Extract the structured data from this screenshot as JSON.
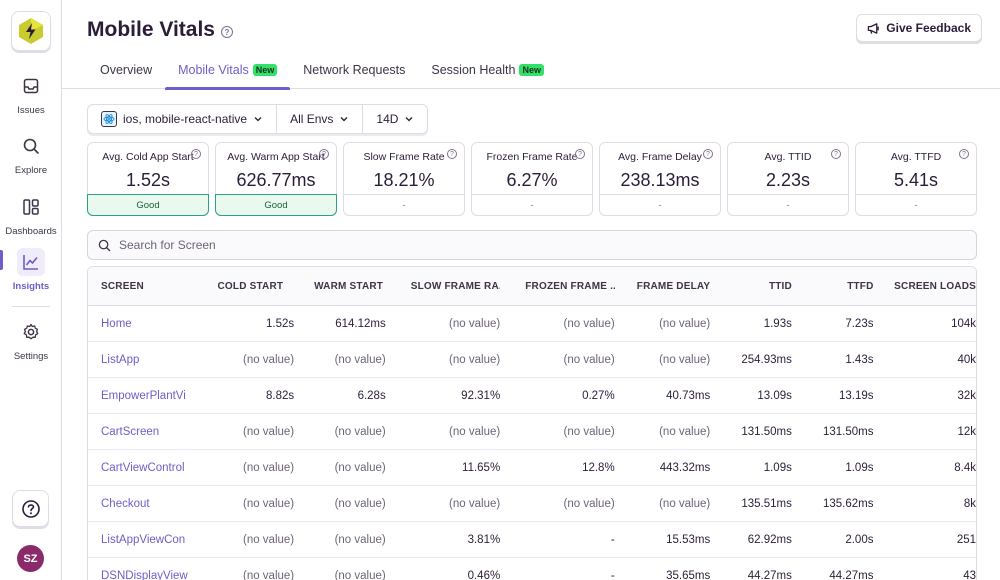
{
  "sidebar": {
    "items": [
      {
        "label": "Issues",
        "icon": "inbox-icon"
      },
      {
        "label": "Explore",
        "icon": "search-icon"
      },
      {
        "label": "Dashboards",
        "icon": "dashboard-icon"
      },
      {
        "label": "Insights",
        "icon": "chart-icon"
      },
      {
        "label": "Settings",
        "icon": "gear-icon"
      }
    ],
    "avatar_initials": "SZ"
  },
  "header": {
    "title": "Mobile Vitals",
    "feedback_label": "Give Feedback",
    "tabs": [
      {
        "label": "Overview",
        "badge": ""
      },
      {
        "label": "Mobile Vitals",
        "badge": "New"
      },
      {
        "label": "Network Requests",
        "badge": ""
      },
      {
        "label": "Session Health",
        "badge": "New"
      }
    ]
  },
  "filters": {
    "project": "ios, mobile-react-native",
    "environment": "All Envs",
    "period": "14D"
  },
  "cards": [
    {
      "label": "Avg. Cold App Start",
      "value": "1.52s",
      "status": "Good"
    },
    {
      "label": "Avg. Warm App Start",
      "value": "626.77ms",
      "status": "Good"
    },
    {
      "label": "Slow Frame Rate",
      "value": "18.21%",
      "status": "-"
    },
    {
      "label": "Frozen Frame Rate",
      "value": "6.27%",
      "status": "-"
    },
    {
      "label": "Avg. Frame Delay",
      "value": "238.13ms",
      "status": "-"
    },
    {
      "label": "Avg. TTID",
      "value": "2.23s",
      "status": "-"
    },
    {
      "label": "Avg. TTFD",
      "value": "5.41s",
      "status": "-"
    }
  ],
  "search": {
    "placeholder": "Search for Screen"
  },
  "table": {
    "columns": [
      "SCREEN",
      "COLD START",
      "WARM START",
      "SLOW FRAME RA...",
      "FROZEN FRAME ...",
      "FRAME DELAY",
      "TTID",
      "TTFD",
      "SCREEN LOADS"
    ],
    "rows": [
      [
        "Home",
        "1.52s",
        "614.12ms",
        "(no value)",
        "(no value)",
        "(no value)",
        "1.93s",
        "7.23s",
        "104k"
      ],
      [
        "ListApp",
        "(no value)",
        "(no value)",
        "(no value)",
        "(no value)",
        "(no value)",
        "254.93ms",
        "1.43s",
        "40k"
      ],
      [
        "EmpowerPlantVi",
        "8.82s",
        "6.28s",
        "92.31%",
        "0.27%",
        "40.73ms",
        "13.09s",
        "13.19s",
        "32k"
      ],
      [
        "CartScreen",
        "(no value)",
        "(no value)",
        "(no value)",
        "(no value)",
        "(no value)",
        "131.50ms",
        "131.50ms",
        "12k"
      ],
      [
        "CartViewControl",
        "(no value)",
        "(no value)",
        "11.65%",
        "12.8%",
        "443.32ms",
        "1.09s",
        "1.09s",
        "8.4k"
      ],
      [
        "Checkout",
        "(no value)",
        "(no value)",
        "(no value)",
        "(no value)",
        "(no value)",
        "135.51ms",
        "135.62ms",
        "8k"
      ],
      [
        "ListAppViewCon",
        "(no value)",
        "(no value)",
        "3.81%",
        "-",
        "15.53ms",
        "62.92ms",
        "2.00s",
        "251"
      ],
      [
        "DSNDisplayView",
        "(no value)",
        "(no value)",
        "0.46%",
        "-",
        "35.65ms",
        "44.27ms",
        "44.27ms",
        "43"
      ]
    ]
  },
  "colors": {
    "accent": "#6c5fc7",
    "good": "#2ba185",
    "badge": "#33e06a"
  }
}
